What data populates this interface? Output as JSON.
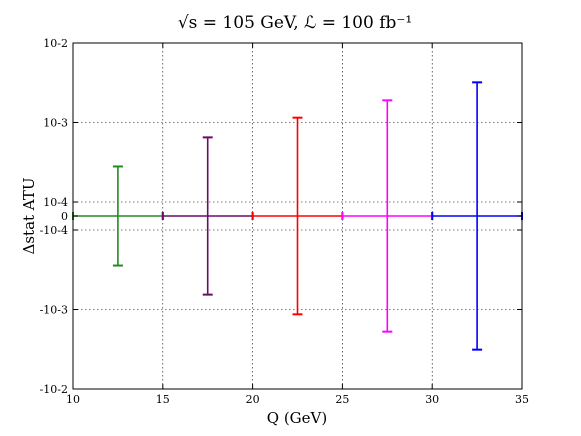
{
  "chart_data": {
    "type": "errorbar",
    "title": "√s = 105 GeV, ℒ = 100 fb⁻¹",
    "xlabel": "Q (GeV)",
    "ylabel": "Δstat ATU",
    "xlim": [
      10,
      35
    ],
    "yscale": "symlog",
    "linthresh": 0.0001,
    "ylim": [
      -0.01,
      0.01
    ],
    "x_ticks": [
      "10",
      "15",
      "20",
      "25",
      "30",
      "35"
    ],
    "y_ticks": [
      {
        "value": 0.01,
        "label": "10-2"
      },
      {
        "value": 0.001,
        "label": "10-3"
      },
      {
        "value": 0.0001,
        "label": "10-4"
      },
      {
        "value": 0,
        "label": "0"
      },
      {
        "value": -0.0001,
        "label": "-10-4"
      },
      {
        "value": -0.001,
        "label": "-10-3"
      },
      {
        "value": -0.01,
        "label": "-10-2"
      }
    ],
    "grid": true,
    "series": [
      {
        "color": "#228b22",
        "bin": [
          10,
          15
        ],
        "x": 12.5,
        "y": 0,
        "yerr": 0.00028
      },
      {
        "color": "#6a0a6a",
        "bin": [
          15,
          20
        ],
        "x": 17.5,
        "y": 0,
        "yerr": 0.00065
      },
      {
        "color": "#ff0000",
        "bin": [
          20,
          25
        ],
        "x": 22.5,
        "y": 0,
        "yerr": 0.00115
      },
      {
        "color": "#ff00ff",
        "bin": [
          25,
          30
        ],
        "x": 27.5,
        "y": 0,
        "yerr": 0.0019
      },
      {
        "color": "#0000ff",
        "bin": [
          30,
          35
        ],
        "x": 32.5,
        "y": 0,
        "yerr": 0.0032
      }
    ]
  }
}
